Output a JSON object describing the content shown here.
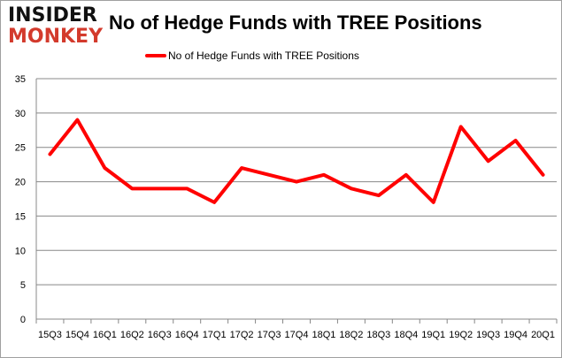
{
  "logo": {
    "line1": "INSIDER",
    "line2": "MONKEY"
  },
  "chart_data": {
    "type": "line",
    "title": "No of Hedge Funds with TREE Positions",
    "categories": [
      "15Q3",
      "15Q4",
      "16Q1",
      "16Q2",
      "16Q3",
      "16Q4",
      "17Q1",
      "17Q2",
      "17Q3",
      "17Q4",
      "18Q1",
      "18Q2",
      "18Q3",
      "18Q4",
      "19Q1",
      "19Q2",
      "19Q3",
      "19Q4",
      "20Q1"
    ],
    "series": [
      {
        "name": "No of Hedge Funds with TREE Positions",
        "color": "#ff0000",
        "values": [
          24,
          29,
          22,
          19,
          19,
          19,
          17,
          22,
          21,
          20,
          21,
          19,
          18,
          21,
          17,
          28,
          23,
          26,
          21
        ]
      }
    ],
    "ylim": [
      0,
      35
    ],
    "yticks": [
      0,
      5,
      10,
      15,
      20,
      25,
      30,
      35
    ],
    "grid": true,
    "legend": "top-center"
  }
}
